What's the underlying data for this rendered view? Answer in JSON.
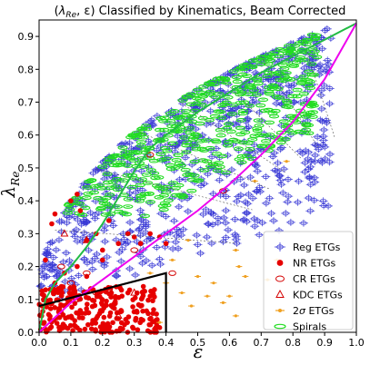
{
  "chart_data": {
    "type": "scatter",
    "title": "(λRe, ε) Classified by Kinematics, Beam Corrected",
    "title_parts": {
      "open": "(",
      "lambda": "λ",
      "subscript": "Re",
      "rest": ", ε) Classified by Kinematics, Beam Corrected"
    },
    "xlabel": "ε",
    "ylabel": {
      "lambda": "λ",
      "subscript": "Re"
    },
    "xlim": [
      0.0,
      1.0
    ],
    "ylim": [
      0.0,
      0.95
    ],
    "xticks": [
      "0.0",
      "0.1",
      "0.2",
      "0.3",
      "0.4",
      "0.5",
      "0.6",
      "0.7",
      "0.8",
      "0.9",
      "1.0"
    ],
    "yticks": [
      "0.0",
      "0.1",
      "0.2",
      "0.3",
      "0.4",
      "0.5",
      "0.6",
      "0.7",
      "0.8",
      "0.9"
    ],
    "grid": false,
    "legend_position": "bottom-right",
    "colors": {
      "reg": "#3b3bd6",
      "nr": "#e60000",
      "cr": "#d40000",
      "kdc": "#d40000",
      "two_sigma": "#f0a020",
      "spirals": "#22dd22",
      "edge_on": "#22bb44",
      "isotropic": "#ee00ee",
      "slow_box": "#000000"
    },
    "series": [
      {
        "name": "Reg ETGs",
        "key": "reg",
        "marker": "cross-ellipse",
        "count": 760,
        "region": "λ ≳ 0.1, spread over ε 0–0.95, densest near the upper envelope"
      },
      {
        "name": "NR ETGs",
        "key": "nr",
        "marker": "filled-circle",
        "points": [
          [
            0.05,
            0.36
          ],
          [
            0.1,
            0.4
          ],
          [
            0.12,
            0.42
          ],
          [
            0.15,
            0.28
          ],
          [
            0.18,
            0.3
          ],
          [
            0.2,
            0.25
          ],
          [
            0.22,
            0.34
          ],
          [
            0.25,
            0.27
          ],
          [
            0.28,
            0.3
          ],
          [
            0.3,
            0.29
          ],
          [
            0.32,
            0.27
          ],
          [
            0.35,
            0.3
          ],
          [
            0.38,
            0.29
          ],
          [
            0.4,
            0.27
          ],
          [
            0.05,
            0.15
          ],
          [
            0.08,
            0.18
          ],
          [
            0.12,
            0.2
          ],
          [
            0.15,
            0.17
          ],
          [
            0.2,
            0.22
          ],
          [
            0.28,
            0.12
          ],
          [
            0.32,
            0.08
          ],
          [
            0.35,
            0.11
          ],
          [
            0.02,
            0.22
          ],
          [
            0.04,
            0.33
          ],
          [
            0.13,
            0.37
          ]
        ],
        "cluster": {
          "count": 260,
          "xrange": [
            0.0,
            0.38
          ],
          "yrange": [
            0.0,
            0.14
          ]
        }
      },
      {
        "name": "CR ETGs",
        "key": "cr",
        "marker": "open-ellipse",
        "points": [
          [
            0.07,
            0.2
          ],
          [
            0.1,
            0.15
          ],
          [
            0.15,
            0.18
          ],
          [
            0.18,
            0.12
          ],
          [
            0.22,
            0.13
          ],
          [
            0.3,
            0.25
          ],
          [
            0.35,
            0.54
          ],
          [
            0.58,
            0.43
          ],
          [
            0.12,
            0.1
          ],
          [
            0.42,
            0.18
          ]
        ]
      },
      {
        "name": "KDC ETGs",
        "key": "kdc",
        "marker": "open-triangle",
        "points": [
          [
            0.08,
            0.3
          ],
          [
            0.15,
            0.28
          ],
          [
            0.25,
            0.05
          ],
          [
            0.3,
            0.12
          ],
          [
            0.02,
            0.1
          ]
        ]
      },
      {
        "name": "2σ ETGs",
        "key": "two_sigma",
        "marker": "errorbar-dot",
        "points": [
          [
            0.35,
            0.18
          ],
          [
            0.45,
            0.12
          ],
          [
            0.5,
            0.17
          ],
          [
            0.55,
            0.15
          ],
          [
            0.58,
            0.09
          ],
          [
            0.6,
            0.11
          ],
          [
            0.62,
            0.05
          ],
          [
            0.65,
            0.17
          ],
          [
            0.62,
            0.25
          ],
          [
            0.72,
            0.16
          ],
          [
            0.75,
            0.22
          ],
          [
            0.53,
            0.11
          ],
          [
            0.48,
            0.08
          ],
          [
            0.42,
            0.22
          ],
          [
            0.38,
            0.03
          ],
          [
            0.63,
            0.2
          ],
          [
            0.78,
            0.52
          ],
          [
            0.68,
            0.46
          ],
          [
            0.47,
            0.28
          ],
          [
            0.4,
            0.15
          ]
        ]
      },
      {
        "name": "Spirals",
        "key": "spirals",
        "marker": "wide-open-ellipse",
        "count": 580,
        "region": "upper envelope, λ ≳ 0.45, ε 0–0.9"
      }
    ],
    "curves": [
      {
        "key": "edge_on",
        "description": "edge-on fast-rotator line",
        "x": [
          0.0,
          0.02,
          0.05,
          0.1,
          0.15,
          0.2,
          0.25,
          0.3,
          0.35,
          0.4,
          0.5,
          0.6,
          0.7,
          0.8,
          0.9,
          1.0
        ],
        "y": [
          0.0,
          0.1,
          0.15,
          0.2,
          0.26,
          0.33,
          0.41,
          0.49,
          0.56,
          0.6,
          0.67,
          0.73,
          0.79,
          0.84,
          0.89,
          0.94
        ]
      },
      {
        "key": "isotropic",
        "description": "isotropic rotator line",
        "x": [
          0.0,
          0.1,
          0.2,
          0.3,
          0.4,
          0.5,
          0.6,
          0.7,
          0.8,
          0.9,
          1.0
        ],
        "y": [
          0.0,
          0.09,
          0.16,
          0.23,
          0.3,
          0.37,
          0.45,
          0.54,
          0.64,
          0.77,
          0.94
        ]
      },
      {
        "key": "slow_box",
        "description": "slow-rotator region boundary",
        "x": [
          0.0,
          0.4,
          0.4,
          0.4
        ],
        "y": [
          0.08,
          0.18,
          0.18,
          0.0
        ]
      }
    ]
  }
}
